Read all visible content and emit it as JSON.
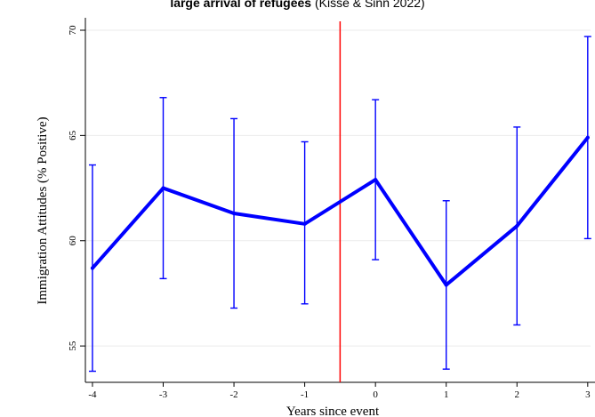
{
  "chart_data": {
    "type": "line",
    "title_bold": "large arrival of refugees",
    "title_rest": " (Kissé & Sinn 2022)",
    "xlabel": "Years since event",
    "ylabel": "Immigration Attitudes (% Positive)",
    "x": [
      -4,
      -3,
      -2,
      -1,
      0,
      1,
      2,
      3
    ],
    "x_tick_labels": [
      "-4",
      "-3",
      "-2",
      "-1",
      "0",
      "1",
      "2",
      "3"
    ],
    "y_ticks": [
      55,
      60,
      65,
      70
    ],
    "y_tick_labels": [
      "55",
      "60",
      "65",
      "70"
    ],
    "xlim": [
      -4.1,
      3.04
    ],
    "ylim": [
      53.4,
      70.0
    ],
    "series": [
      {
        "values": [
          58.7,
          62.5,
          61.3,
          60.8,
          62.9,
          57.9,
          60.7,
          64.9
        ],
        "ci_lower": [
          53.8,
          58.2,
          56.8,
          57.0,
          59.1,
          53.9,
          56.0,
          60.1
        ],
        "ci_upper": [
          63.6,
          66.8,
          65.8,
          64.7,
          66.7,
          61.9,
          65.4,
          69.7
        ],
        "color": "#0000ff"
      }
    ],
    "event_line": {
      "x": -0.5,
      "color": "#ff0000"
    },
    "grid": true,
    "grid_color": "#ebebeb"
  }
}
